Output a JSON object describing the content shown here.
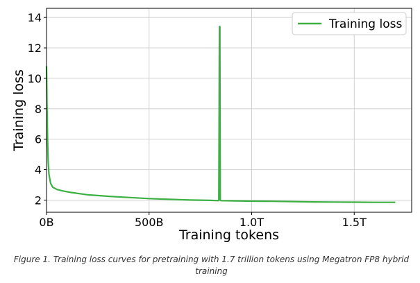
{
  "chart_data": {
    "type": "line",
    "xlabel": "Training tokens",
    "ylabel": "Training loss",
    "xlim": [
      0,
      1.78
    ],
    "ylim": [
      1.2,
      14.6
    ],
    "x_unit": "trillion tokens",
    "x_ticks": [
      {
        "value": 0,
        "label": "0B"
      },
      {
        "value": 0.5,
        "label": "500B"
      },
      {
        "value": 1.0,
        "label": "1.0T"
      },
      {
        "value": 1.5,
        "label": "1.5T"
      }
    ],
    "y_ticks": [
      2,
      4,
      6,
      8,
      10,
      12,
      14
    ],
    "grid": true,
    "legend_position": "top-right",
    "series": [
      {
        "name": "Training loss",
        "color": "#3cb043",
        "x": [
          0,
          0.002,
          0.005,
          0.008,
          0.012,
          0.02,
          0.03,
          0.05,
          0.08,
          0.12,
          0.2,
          0.3,
          0.4,
          0.5,
          0.6,
          0.7,
          0.8,
          0.84,
          0.843,
          0.845,
          0.847,
          0.85,
          0.9,
          1.0,
          1.1,
          1.2,
          1.3,
          1.4,
          1.5,
          1.6,
          1.7
        ],
        "y": [
          10.8,
          8.5,
          6.0,
          4.5,
          3.7,
          3.1,
          2.85,
          2.7,
          2.6,
          2.5,
          2.35,
          2.25,
          2.17,
          2.1,
          2.05,
          2.0,
          1.98,
          1.96,
          13.4,
          13.4,
          2.0,
          1.96,
          1.95,
          1.93,
          1.92,
          1.9,
          1.88,
          1.87,
          1.86,
          1.85,
          1.85
        ]
      }
    ]
  },
  "caption": "Figure 1. Training loss curves for pretraining with 1.7 trillion tokens using Megatron FP8 hybrid training"
}
